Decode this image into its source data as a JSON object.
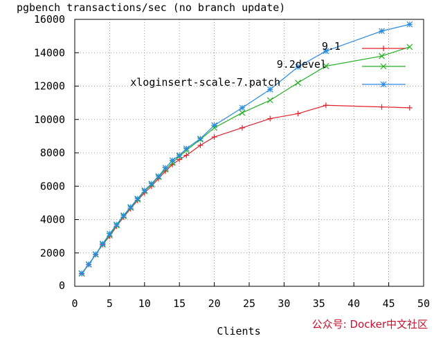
{
  "chart_data": {
    "type": "line",
    "title": "pgbench transactions/sec (no branch update)",
    "xlabel": "Clients",
    "ylabel": "",
    "xlim": [
      0,
      50
    ],
    "ylim": [
      0,
      16000
    ],
    "x_ticks": [
      0,
      5,
      10,
      15,
      20,
      25,
      30,
      35,
      40,
      45,
      50
    ],
    "y_ticks": [
      0,
      2000,
      4000,
      6000,
      8000,
      10000,
      12000,
      14000,
      16000
    ],
    "grid": true,
    "legend_position": "top-right",
    "series": [
      {
        "name": "9.1",
        "color": "#e0202a",
        "marker": "plus",
        "x": [
          1,
          2,
          3,
          4,
          5,
          6,
          7,
          8,
          9,
          10,
          11,
          12,
          13,
          14,
          15,
          16,
          18,
          20,
          24,
          28,
          32,
          36,
          44,
          48
        ],
        "y": [
          750,
          1300,
          1900,
          2500,
          3000,
          3600,
          4150,
          4650,
          5150,
          5600,
          6000,
          6450,
          6900,
          7300,
          7600,
          7850,
          8450,
          8950,
          9500,
          10050,
          10350,
          10850,
          10750,
          10700
        ]
      },
      {
        "name": "9.2devel",
        "color": "#22b022",
        "marker": "x",
        "x": [
          1,
          2,
          3,
          4,
          5,
          6,
          7,
          8,
          9,
          10,
          11,
          12,
          13,
          14,
          15,
          16,
          18,
          20,
          24,
          28,
          32,
          36,
          44,
          48
        ],
        "y": [
          760,
          1300,
          1900,
          2500,
          3050,
          3650,
          4200,
          4700,
          5200,
          5700,
          6100,
          6550,
          7000,
          7400,
          7800,
          8150,
          8800,
          9500,
          10400,
          11150,
          12200,
          13200,
          13800,
          14350
        ]
      },
      {
        "name": "xloginsert-scale-7.patch",
        "color": "#2a8ae0",
        "marker": "star",
        "x": [
          1,
          2,
          3,
          4,
          5,
          6,
          7,
          8,
          9,
          10,
          11,
          12,
          13,
          14,
          15,
          16,
          18,
          20,
          24,
          28,
          32,
          36,
          44,
          48
        ],
        "y": [
          780,
          1320,
          1920,
          2550,
          3150,
          3700,
          4250,
          4750,
          5250,
          5750,
          6150,
          6600,
          7100,
          7550,
          7850,
          8250,
          8850,
          9650,
          10700,
          11800,
          13150,
          14100,
          15300,
          15700
        ]
      }
    ]
  },
  "watermark": "公众号: Docker中文社区"
}
